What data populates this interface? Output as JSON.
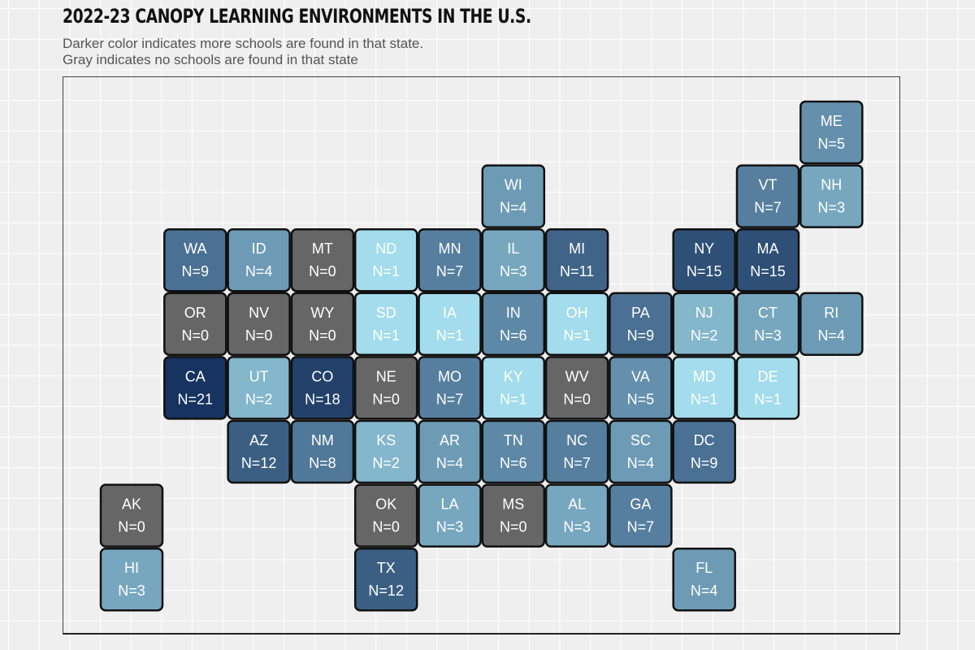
{
  "title": "2022-23 CANOPY LEARNING ENVIRONMENTS IN THE U.S.",
  "subtitle_lines": [
    "Darker color indicates more schools are found in that state.",
    "Gray indicates no schools are found in that state"
  ],
  "colors": {
    "background": "#efefef",
    "zero_fill": "#666666",
    "scale_low": "#a3dcec",
    "scale_high": "#17335f",
    "tile_border": "#111111",
    "label_light": "#ffffff"
  },
  "chart_data": {
    "type": "heatmap",
    "subtype": "tile-grid-map",
    "value_label_prefix": "N=",
    "grid": true,
    "states": [
      {
        "abbr": "ME",
        "n": 5,
        "col": 11,
        "row": 0
      },
      {
        "abbr": "WI",
        "n": 4,
        "col": 6,
        "row": 1
      },
      {
        "abbr": "VT",
        "n": 7,
        "col": 10,
        "row": 1
      },
      {
        "abbr": "NH",
        "n": 3,
        "col": 11,
        "row": 1
      },
      {
        "abbr": "WA",
        "n": 9,
        "col": 1,
        "row": 2
      },
      {
        "abbr": "ID",
        "n": 4,
        "col": 2,
        "row": 2
      },
      {
        "abbr": "MT",
        "n": 0,
        "col": 3,
        "row": 2
      },
      {
        "abbr": "ND",
        "n": 1,
        "col": 4,
        "row": 2
      },
      {
        "abbr": "MN",
        "n": 7,
        "col": 5,
        "row": 2
      },
      {
        "abbr": "IL",
        "n": 3,
        "col": 6,
        "row": 2
      },
      {
        "abbr": "MI",
        "n": 11,
        "col": 7,
        "row": 2
      },
      {
        "abbr": "NY",
        "n": 15,
        "col": 9,
        "row": 2
      },
      {
        "abbr": "MA",
        "n": 15,
        "col": 10,
        "row": 2
      },
      {
        "abbr": "OR",
        "n": 0,
        "col": 1,
        "row": 3
      },
      {
        "abbr": "NV",
        "n": 0,
        "col": 2,
        "row": 3
      },
      {
        "abbr": "WY",
        "n": 0,
        "col": 3,
        "row": 3
      },
      {
        "abbr": "SD",
        "n": 1,
        "col": 4,
        "row": 3
      },
      {
        "abbr": "IA",
        "n": 1,
        "col": 5,
        "row": 3
      },
      {
        "abbr": "IN",
        "n": 6,
        "col": 6,
        "row": 3
      },
      {
        "abbr": "OH",
        "n": 1,
        "col": 7,
        "row": 3
      },
      {
        "abbr": "PA",
        "n": 9,
        "col": 8,
        "row": 3
      },
      {
        "abbr": "NJ",
        "n": 2,
        "col": 9,
        "row": 3
      },
      {
        "abbr": "CT",
        "n": 3,
        "col": 10,
        "row": 3
      },
      {
        "abbr": "RI",
        "n": 4,
        "col": 11,
        "row": 3
      },
      {
        "abbr": "CA",
        "n": 21,
        "col": 1,
        "row": 4
      },
      {
        "abbr": "UT",
        "n": 2,
        "col": 2,
        "row": 4
      },
      {
        "abbr": "CO",
        "n": 18,
        "col": 3,
        "row": 4
      },
      {
        "abbr": "NE",
        "n": 0,
        "col": 4,
        "row": 4
      },
      {
        "abbr": "MO",
        "n": 7,
        "col": 5,
        "row": 4
      },
      {
        "abbr": "KY",
        "n": 1,
        "col": 6,
        "row": 4
      },
      {
        "abbr": "WV",
        "n": 0,
        "col": 7,
        "row": 4
      },
      {
        "abbr": "VA",
        "n": 5,
        "col": 8,
        "row": 4
      },
      {
        "abbr": "MD",
        "n": 1,
        "col": 9,
        "row": 4
      },
      {
        "abbr": "DE",
        "n": 1,
        "col": 10,
        "row": 4
      },
      {
        "abbr": "AZ",
        "n": 12,
        "col": 2,
        "row": 5
      },
      {
        "abbr": "NM",
        "n": 8,
        "col": 3,
        "row": 5
      },
      {
        "abbr": "KS",
        "n": 2,
        "col": 4,
        "row": 5
      },
      {
        "abbr": "AR",
        "n": 4,
        "col": 5,
        "row": 5
      },
      {
        "abbr": "TN",
        "n": 6,
        "col": 6,
        "row": 5
      },
      {
        "abbr": "NC",
        "n": 7,
        "col": 7,
        "row": 5
      },
      {
        "abbr": "SC",
        "n": 4,
        "col": 8,
        "row": 5
      },
      {
        "abbr": "DC",
        "n": 9,
        "col": 9,
        "row": 5
      },
      {
        "abbr": "AK",
        "n": 0,
        "col": 0,
        "row": 6
      },
      {
        "abbr": "OK",
        "n": 0,
        "col": 4,
        "row": 6
      },
      {
        "abbr": "LA",
        "n": 3,
        "col": 5,
        "row": 6
      },
      {
        "abbr": "MS",
        "n": 0,
        "col": 6,
        "row": 6
      },
      {
        "abbr": "AL",
        "n": 3,
        "col": 7,
        "row": 6
      },
      {
        "abbr": "GA",
        "n": 7,
        "col": 8,
        "row": 6
      },
      {
        "abbr": "HI",
        "n": 3,
        "col": 0,
        "row": 7
      },
      {
        "abbr": "TX",
        "n": 12,
        "col": 4,
        "row": 7
      },
      {
        "abbr": "FL",
        "n": 4,
        "col": 9,
        "row": 7
      }
    ]
  }
}
